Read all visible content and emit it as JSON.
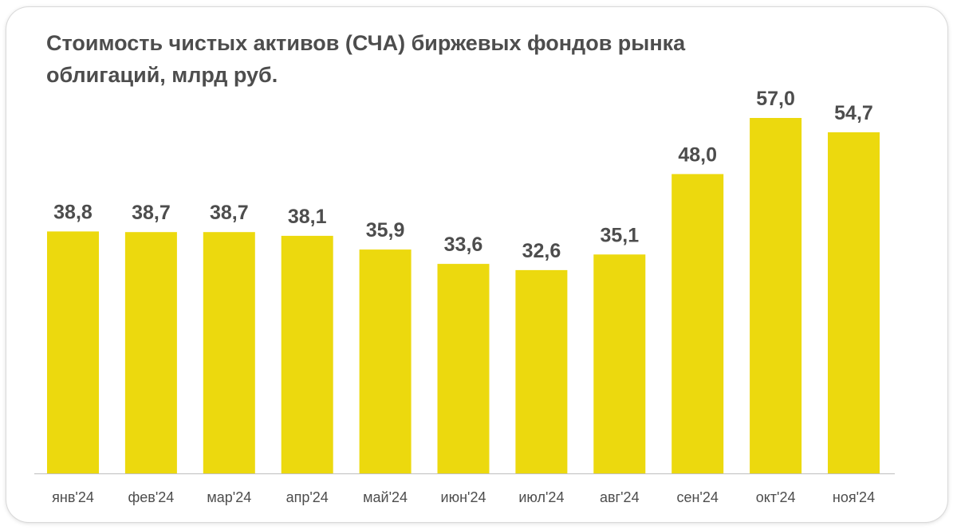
{
  "chart_data": {
    "type": "bar",
    "title": "Стоимость чистых активов (СЧА) биржевых фондов рынка облигаций, млрд руб.",
    "categories": [
      "янв'24",
      "фев'24",
      "мар'24",
      "апр'24",
      "май'24",
      "июн'24",
      "июл'24",
      "авг'24",
      "сен'24",
      "окт'24",
      "ноя'24"
    ],
    "values": [
      38.8,
      38.7,
      38.7,
      38.1,
      35.9,
      33.6,
      32.6,
      35.1,
      48.0,
      57.0,
      54.7
    ],
    "value_labels": [
      "38,8",
      "38,7",
      "38,7",
      "38,1",
      "35,9",
      "33,6",
      "32,6",
      "35,1",
      "48,0",
      "57,0",
      "54,7"
    ],
    "xlabel": "",
    "ylabel": "",
    "ylim": [
      0,
      60
    ],
    "grid": false,
    "legend": "none",
    "bar_color": "#ecd90e",
    "axis_color": "#bfbfbf",
    "text_color": "#4d4d4d"
  }
}
